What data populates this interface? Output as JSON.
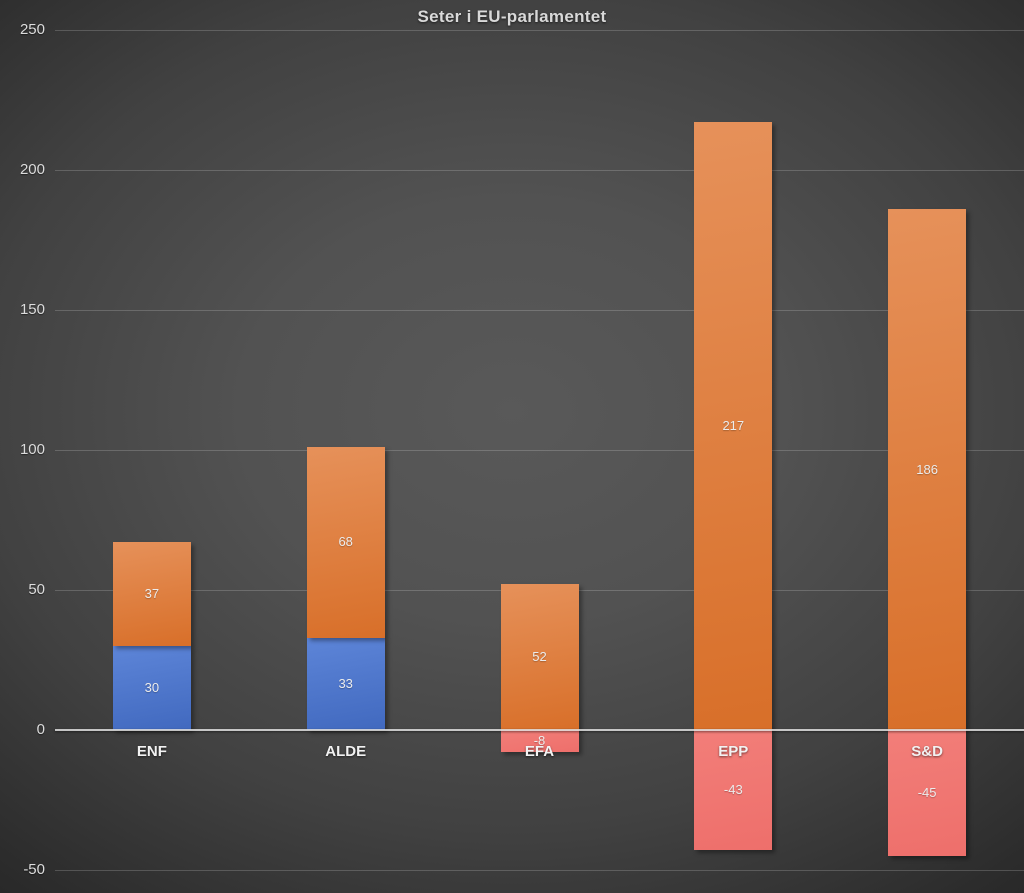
{
  "chart_data": {
    "type": "bar",
    "stacked": true,
    "title": "Seter i EU-parlamentet",
    "categories": [
      "ENF",
      "ALDE",
      "EFA",
      "EPP",
      "S&D"
    ],
    "series": [
      {
        "name": "blue-segment",
        "color_top": "#5d85d8",
        "color_bottom": "#4169bf",
        "values": [
          30,
          33,
          0,
          0,
          0
        ]
      },
      {
        "name": "orange-segment",
        "color_top": "#e6915a",
        "color_bottom": "#d86f29",
        "values": [
          37,
          68,
          52,
          217,
          186
        ]
      },
      {
        "name": "red-segment",
        "color_top": "#f27e79",
        "color_bottom": "#ee6f6b",
        "values": [
          0,
          0,
          -8,
          -43,
          -45
        ]
      }
    ],
    "ylim": [
      -50,
      250
    ],
    "yticks": [
      -50,
      0,
      50,
      100,
      150,
      200,
      250
    ],
    "grid": true,
    "legend": "none",
    "xlabel": "",
    "ylabel": "",
    "background": "dark-radial-gradient",
    "colors": {
      "title_text": "#d9d9d9",
      "tick_text": "#dcdcdc",
      "gridline": "rgba(255,255,255,0.18)",
      "zero_axis": "#dedede",
      "bg_center": "#595959",
      "bg_corner": "#212121"
    }
  }
}
